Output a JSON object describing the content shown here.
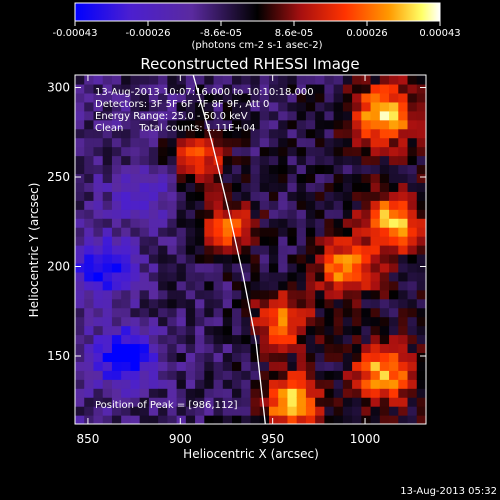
{
  "chart_data": {
    "type": "heatmap",
    "title": "Reconstructed RHESSI Image",
    "xlabel": "Heliocentric X (arcsec)",
    "ylabel": "Heliocentric Y (arcsec)",
    "xlim": [
      843,
      1033
    ],
    "ylim": [
      112,
      307
    ],
    "xticks": [
      850,
      900,
      950,
      1000
    ],
    "yticks": [
      150,
      200,
      250,
      300
    ],
    "limb_curve": [
      [
        907,
        307
      ],
      [
        917,
        270
      ],
      [
        926,
        232
      ],
      [
        934,
        195
      ],
      [
        941,
        158
      ],
      [
        946,
        112
      ]
    ],
    "colorbar": {
      "min": -0.00043,
      "max": 0.00043,
      "tick_labels": [
        "-0.00043",
        "-0.00026",
        "-8.6e-05",
        "8.6e-05",
        "0.00026",
        "0.00043"
      ],
      "label": "(photons cm-2 s-1 asec-2)",
      "colormap": [
        "#0000ff",
        "#4b1fd0",
        "#5a2a9f",
        "#000000",
        "#a81010",
        "#ff3300",
        "#ff9900",
        "#ffff66",
        "#ffffff"
      ]
    },
    "peak_label": "Position of Peak = [986,112]",
    "annotations": [
      "13-Aug-2013 10:07:16.000 to 10:10:18.000",
      "Detectors: 3F 5F 6F 7F 8F 9F, Att 0",
      "Energy Range: 25.0 - 50.0 keV",
      "Clean     Total counts: 1.11E+04"
    ],
    "sources": [
      {
        "x": 1010,
        "y": 285,
        "amp": 0.00043
      },
      {
        "x": 1015,
        "y": 225,
        "amp": 0.00036
      },
      {
        "x": 990,
        "y": 200,
        "amp": 0.00034
      },
      {
        "x": 960,
        "y": 125,
        "amp": 0.00043
      },
      {
        "x": 1010,
        "y": 140,
        "amp": 0.00038
      },
      {
        "x": 955,
        "y": 170,
        "amp": 0.00033
      },
      {
        "x": 925,
        "y": 222,
        "amp": 0.00032
      },
      {
        "x": 910,
        "y": 262,
        "amp": 0.00028
      },
      {
        "x": 870,
        "y": 150,
        "amp": -0.0004
      },
      {
        "x": 858,
        "y": 200,
        "amp": -0.00032
      },
      {
        "x": 880,
        "y": 240,
        "amp": -0.0002
      }
    ]
  },
  "footer": {
    "timestamp": "13-Aug-2013 05:32"
  }
}
